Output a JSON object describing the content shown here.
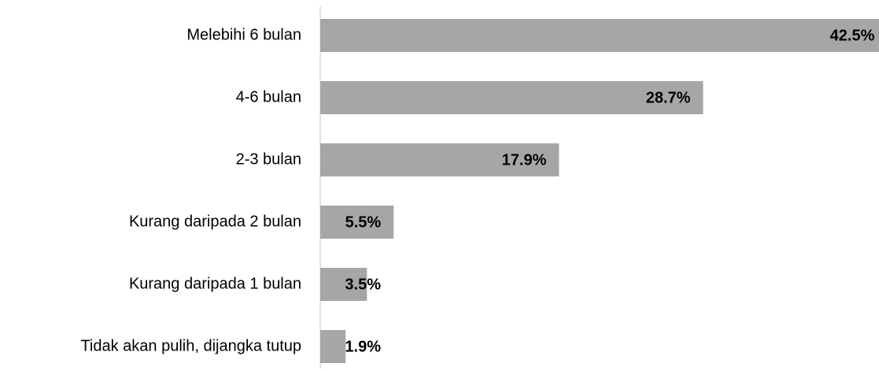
{
  "chart_data": {
    "type": "bar",
    "orientation": "horizontal",
    "categories": [
      "Melebihi 6 bulan",
      "4-6 bulan",
      "2-3 bulan",
      "Kurang daripada 2 bulan",
      "Kurang daripada 1 bulan",
      "Tidak akan pulih, dijangka tutup"
    ],
    "values": [
      42.5,
      28.7,
      17.9,
      5.5,
      3.5,
      1.9
    ],
    "value_labels": [
      "42.5%",
      "28.7%",
      "17.9%",
      "5.5%",
      "3.5%",
      "1.9%"
    ],
    "color": "#a6a6a6"
  }
}
